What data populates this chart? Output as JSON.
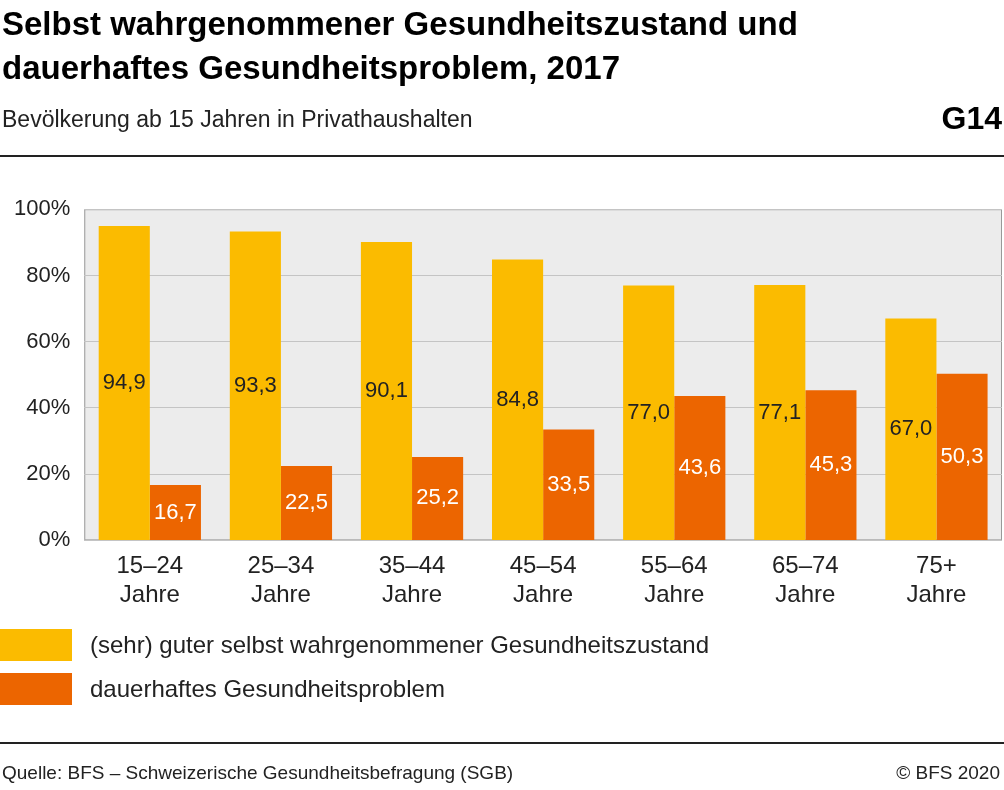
{
  "chart_data": {
    "type": "bar",
    "title": "Selbst wahrgenommener Gesundheitszustand und dauerhaftes Gesundheitsproblem, 2017",
    "subtitle": "Bevölkerung ab 15 Jahren in Privathaushalten",
    "categories": [
      "15–24 Jahre",
      "25–34 Jahre",
      "35–44 Jahre",
      "45–54 Jahre",
      "55–64 Jahre",
      "65–74 Jahre",
      "75+ Jahre"
    ],
    "series": [
      {
        "name": "(sehr) guter selbst wahrgenommener Gesundheitszustand",
        "color": "#fbbb00",
        "values": [
          94.9,
          93.3,
          90.1,
          84.8,
          77.0,
          77.1,
          67.0
        ],
        "value_labels": [
          "94,9",
          "93,3",
          "90,1",
          "84,8",
          "77,0",
          "77,1",
          "67,0"
        ]
      },
      {
        "name": "dauerhaftes Gesundheitsproblem",
        "color": "#ec6500",
        "values": [
          16.7,
          22.5,
          25.2,
          33.5,
          43.6,
          45.3,
          50.3
        ],
        "value_labels": [
          "16,7",
          "22,5",
          "25,2",
          "33,5",
          "43,6",
          "45,3",
          "50,3"
        ]
      }
    ],
    "ylim": [
      0,
      100
    ],
    "yticks": [
      {
        "value": 0,
        "label": "0%"
      },
      {
        "value": 20,
        "label": "20%"
      },
      {
        "value": 40,
        "label": "40%"
      },
      {
        "value": 60,
        "label": "60%"
      },
      {
        "value": 80,
        "label": "80%"
      },
      {
        "value": 100,
        "label": "100%"
      }
    ],
    "grid": "y",
    "legend": "bottom",
    "annotations": [
      "G14",
      "Quelle: BFS – Schweizerische Gesundheitsbefragung (SGB)",
      "© BFS 2020"
    ]
  }
}
